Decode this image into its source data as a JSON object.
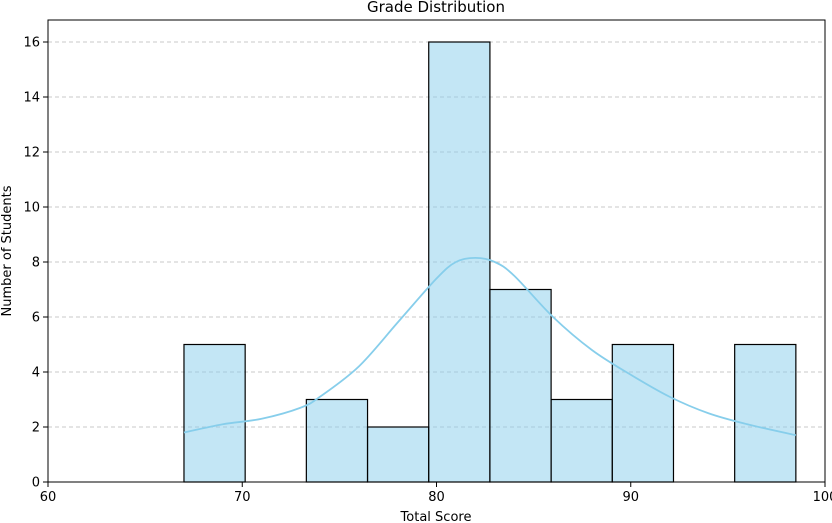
{
  "chart_data": {
    "type": "bar",
    "title": "Grade Distribution",
    "xlabel": "Total Score",
    "ylabel": "Number of Students",
    "xlim": [
      60,
      100
    ],
    "ylim": [
      0,
      16.8
    ],
    "xticks": [
      60,
      70,
      80,
      90,
      100
    ],
    "yticks": [
      0,
      2,
      4,
      6,
      8,
      10,
      12,
      14,
      16
    ],
    "grid": "horizontal-dashed",
    "colors": {
      "bar_fill": "#87ceeb",
      "bar_edge": "#000000",
      "kde_line": "#87ceeb",
      "grid": "#c8c8c8"
    },
    "bins": [
      {
        "x0": 67.0,
        "x1": 70.15,
        "count": 5
      },
      {
        "x0": 70.15,
        "x1": 73.3,
        "count": 0
      },
      {
        "x0": 73.3,
        "x1": 76.45,
        "count": 3
      },
      {
        "x0": 76.45,
        "x1": 79.6,
        "count": 2
      },
      {
        "x0": 79.6,
        "x1": 82.75,
        "count": 16
      },
      {
        "x0": 82.75,
        "x1": 85.9,
        "count": 7
      },
      {
        "x0": 85.9,
        "x1": 89.05,
        "count": 3
      },
      {
        "x0": 89.05,
        "x1": 92.2,
        "count": 5
      },
      {
        "x0": 92.2,
        "x1": 95.35,
        "count": 0
      },
      {
        "x0": 95.35,
        "x1": 98.5,
        "count": 5
      }
    ],
    "kde": {
      "x": [
        67,
        69,
        71,
        73,
        74,
        76,
        78,
        80,
        81,
        82,
        83,
        84,
        86,
        88,
        90,
        92,
        94,
        96,
        98.5
      ],
      "y": [
        1.8,
        2.1,
        2.3,
        2.7,
        3.1,
        4.2,
        5.8,
        7.4,
        8.0,
        8.15,
        8.0,
        7.5,
        6.0,
        4.8,
        3.9,
        3.1,
        2.5,
        2.1,
        1.7
      ]
    }
  }
}
